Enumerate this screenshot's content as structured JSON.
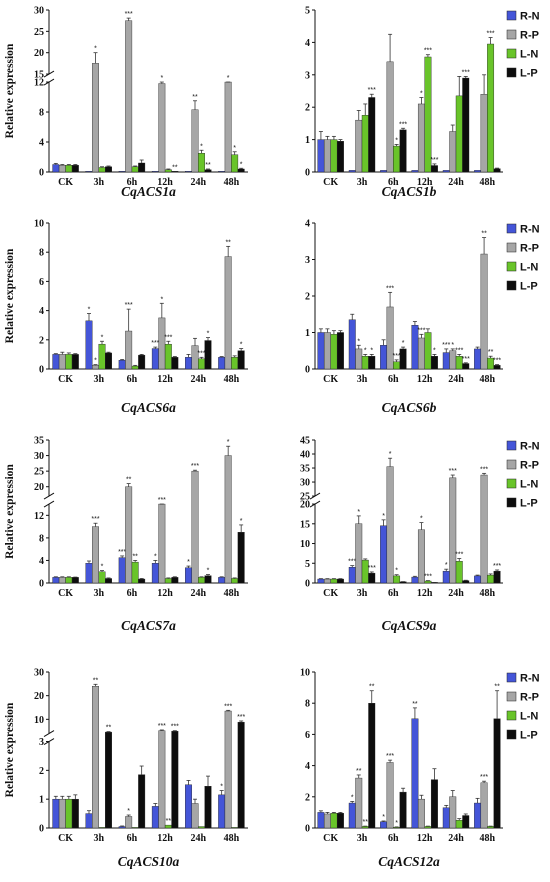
{
  "colors": {
    "R-N": "#4455d8",
    "R-P": "#a6a6a6",
    "L-N": "#69c42a",
    "L-P": "#0d0d0d"
  },
  "legend": [
    "R-N",
    "R-P",
    "L-N",
    "L-P"
  ],
  "chart_data": [
    {
      "type": "bar",
      "title": "CqACS1a",
      "ylabel": "Relative expression",
      "categories": [
        "CK",
        "3h",
        "6h",
        "12h",
        "24h",
        "48h"
      ],
      "ybreak": {
        "lower": [
          0,
          12
        ],
        "upper": [
          15,
          30
        ],
        "ticks_lower": [
          0,
          4,
          8,
          12
        ],
        "ticks_upper": [
          15,
          20,
          25,
          30
        ]
      },
      "series": [
        {
          "name": "R-N",
          "values": [
            1.0,
            0.1,
            0.1,
            0.1,
            0.1,
            0.1
          ],
          "err": [
            0.15,
            0,
            0,
            0,
            0,
            0
          ]
        },
        {
          "name": "R-P",
          "values": [
            0.9,
            17.5,
            27.5,
            11.8,
            8.3,
            12.7
          ],
          "err": [
            0.1,
            2.5,
            0.6,
            2.0,
            1.2,
            1.6
          ]
        },
        {
          "name": "L-N",
          "values": [
            0.9,
            0.6,
            0.7,
            0.3,
            2.5,
            2.3
          ],
          "err": [
            0.1,
            0.1,
            0.1,
            0.1,
            0.4,
            0.4
          ]
        },
        {
          "name": "L-P",
          "values": [
            0.9,
            0.7,
            1.2,
            0.1,
            0.3,
            0.4
          ],
          "err": [
            0.1,
            0.1,
            0.4,
            0,
            0.1,
            0.1
          ]
        }
      ],
      "sig": [
        [
          null,
          null,
          null,
          null
        ],
        [
          null,
          "*",
          null,
          null
        ],
        [
          null,
          "***",
          null,
          null
        ],
        [
          null,
          "*",
          null,
          "**"
        ],
        [
          null,
          "**",
          "*",
          "**"
        ],
        [
          null,
          "*",
          "*",
          "*"
        ]
      ]
    },
    {
      "type": "bar",
      "title": "CqACS1b",
      "ylabel": "",
      "categories": [
        "CK",
        "3h",
        "6h",
        "12h",
        "24h",
        "48h"
      ],
      "ylim": [
        0,
        5
      ],
      "ticks": [
        0,
        1,
        2,
        3,
        4,
        5
      ],
      "series": [
        {
          "name": "R-N",
          "values": [
            1.0,
            0.05,
            0.05,
            0.05,
            0.05,
            0.05
          ],
          "err": [
            0.25,
            0,
            0,
            0,
            0,
            0
          ]
        },
        {
          "name": "R-P",
          "values": [
            1.0,
            1.6,
            3.4,
            2.1,
            1.25,
            2.4
          ],
          "err": [
            0.1,
            0.3,
            0.85,
            0.2,
            0.2,
            0.6
          ]
        },
        {
          "name": "L-N",
          "values": [
            1.0,
            1.75,
            0.8,
            3.55,
            2.35,
            3.95
          ],
          "err": [
            0.1,
            0.35,
            0.05,
            0.07,
            0.6,
            0.2
          ]
        },
        {
          "name": "L-P",
          "values": [
            0.95,
            2.3,
            1.3,
            0.2,
            2.9,
            0.1
          ],
          "err": [
            0.05,
            0.1,
            0.05,
            0.05,
            0.05,
            0.02
          ]
        }
      ],
      "sig": [
        [
          null,
          null,
          null,
          null
        ],
        [
          null,
          null,
          null,
          "***"
        ],
        [
          null,
          null,
          "*",
          "***"
        ],
        [
          null,
          "*",
          "***",
          "***"
        ],
        [
          null,
          null,
          null,
          "***"
        ],
        [
          null,
          null,
          "***",
          null
        ]
      ]
    },
    {
      "type": "bar",
      "title": "CqACS6a",
      "ylabel": "Relative expression",
      "categories": [
        "CK",
        "3h",
        "6h",
        "12h",
        "24h",
        "48h"
      ],
      "ylim": [
        0,
        10
      ],
      "ticks": [
        0,
        2,
        4,
        6,
        8,
        10
      ],
      "series": [
        {
          "name": "R-N",
          "values": [
            1.0,
            3.3,
            0.6,
            1.4,
            0.8,
            0.8
          ],
          "err": [
            0.05,
            0.5,
            0.05,
            0.1,
            0.2,
            0.05
          ]
        },
        {
          "name": "R-P",
          "values": [
            1.0,
            0.25,
            2.6,
            3.5,
            1.6,
            7.7
          ],
          "err": [
            0.15,
            0.05,
            1.5,
            1.0,
            0.5,
            0.7
          ]
        },
        {
          "name": "L-N",
          "values": [
            1.0,
            1.7,
            0.2,
            1.7,
            0.7,
            0.8
          ],
          "err": [
            0.1,
            0.2,
            0.05,
            0.2,
            0.1,
            0.1
          ]
        },
        {
          "name": "L-P",
          "values": [
            1.0,
            1.1,
            0.95,
            0.8,
            1.95,
            1.25
          ],
          "err": [
            0.05,
            0.05,
            0.05,
            0.05,
            0.2,
            0.15
          ]
        }
      ],
      "sig": [
        [
          null,
          null,
          null,
          null
        ],
        [
          "*",
          "*",
          "*",
          null
        ],
        [
          null,
          "***",
          null,
          null
        ],
        [
          "***",
          "*",
          "***",
          null
        ],
        [
          null,
          null,
          "***",
          "*"
        ],
        [
          null,
          "**",
          null,
          "*"
        ]
      ]
    },
    {
      "type": "bar",
      "title": "CqACS6b",
      "ylabel": "",
      "categories": [
        "CK",
        "3h",
        "6h",
        "12h",
        "24h",
        "48h"
      ],
      "ylim": [
        0,
        4
      ],
      "ticks": [
        0,
        1,
        2,
        3,
        4
      ],
      "series": [
        {
          "name": "R-N",
          "values": [
            1.0,
            1.35,
            0.65,
            1.2,
            0.45,
            0.55
          ],
          "err": [
            0.1,
            0.15,
            0.15,
            0.1,
            0.1,
            0.05
          ]
        },
        {
          "name": "R-P",
          "values": [
            1.0,
            0.55,
            1.7,
            0.85,
            0.5,
            3.15
          ],
          "err": [
            0.1,
            0.1,
            0.4,
            0.1,
            0.05,
            0.45
          ]
        },
        {
          "name": "L-N",
          "values": [
            0.95,
            0.35,
            0.2,
            1.0,
            0.35,
            0.3
          ],
          "err": [
            0.1,
            0.05,
            0.05,
            0.1,
            0.05,
            0.05
          ]
        },
        {
          "name": "L-P",
          "values": [
            1.0,
            0.35,
            0.55,
            0.35,
            0.15,
            0.1
          ],
          "err": [
            0.05,
            0.05,
            0.05,
            0.05,
            0.02,
            0.02
          ]
        }
      ],
      "sig": [
        [
          null,
          null,
          null,
          null
        ],
        [
          null,
          "*",
          "*",
          "*"
        ],
        [
          null,
          "***",
          "***",
          "*"
        ],
        [
          null,
          "***",
          null,
          "*"
        ],
        [
          "***",
          "*",
          "***",
          "***"
        ],
        [
          null,
          "**",
          "**",
          "***"
        ]
      ]
    },
    {
      "type": "bar",
      "title": "CqACS7a",
      "ylabel": "Relative expression",
      "categories": [
        "CK",
        "3h",
        "6h",
        "12h",
        "24h",
        "48h"
      ],
      "ybreak": {
        "lower": [
          0,
          14
        ],
        "upper": [
          17,
          35
        ],
        "ticks_lower": [
          0,
          4,
          8,
          12
        ],
        "ticks_upper": [
          20,
          25,
          30,
          35
        ]
      },
      "series": [
        {
          "name": "R-N",
          "values": [
            1.0,
            3.5,
            4.5,
            3.5,
            2.7,
            1.0
          ],
          "err": [
            0.1,
            0.4,
            0.3,
            0.5,
            0.3,
            0.1
          ]
        },
        {
          "name": "R-P",
          "values": [
            1.0,
            10.0,
            20.0,
            14.0,
            25.0,
            30.0
          ],
          "err": [
            0.1,
            0.6,
            1.0,
            0.5,
            0.3,
            3.0
          ]
        },
        {
          "name": "L-N",
          "values": [
            1.0,
            2.0,
            3.7,
            0.8,
            1.0,
            0.8
          ],
          "err": [
            0.1,
            0.2,
            0.3,
            0.1,
            0.1,
            0.1
          ]
        },
        {
          "name": "L-P",
          "values": [
            1.0,
            0.8,
            0.7,
            1.0,
            1.3,
            9.0
          ],
          "err": [
            0.05,
            0.1,
            0.1,
            0.1,
            0.2,
            1.3
          ]
        }
      ],
      "sig": [
        [
          null,
          null,
          null,
          null
        ],
        [
          null,
          "***",
          "*",
          null
        ],
        [
          "***",
          "**",
          "**",
          null
        ],
        [
          "*",
          "***",
          null,
          null
        ],
        [
          "*",
          "***",
          null,
          "*"
        ],
        [
          null,
          "*",
          null,
          "*"
        ]
      ]
    },
    {
      "type": "bar",
      "title": "CqACS9a",
      "ylabel": "",
      "categories": [
        "CK",
        "3h",
        "6h",
        "12h",
        "24h",
        "48h"
      ],
      "ybreak": {
        "lower": [
          0,
          20
        ],
        "upper": [
          25,
          45
        ],
        "ticks_lower": [
          0,
          5,
          10,
          15,
          20
        ],
        "ticks_upper": [
          25,
          30,
          35,
          40,
          45
        ]
      },
      "series": [
        {
          "name": "R-N",
          "values": [
            1.0,
            4.0,
            14.5,
            1.5,
            3.0,
            1.8
          ],
          "err": [
            0.1,
            0.4,
            1.5,
            0.2,
            0.5,
            0.2
          ]
        },
        {
          "name": "R-P",
          "values": [
            1.0,
            15.0,
            35.5,
            13.5,
            31.5,
            32.5
          ],
          "err": [
            0.1,
            2.0,
            3.0,
            1.8,
            1.0,
            0.6
          ]
        },
        {
          "name": "L-N",
          "values": [
            1.0,
            5.8,
            1.8,
            0.5,
            5.5,
            2.0
          ],
          "err": [
            0.1,
            0.3,
            0.3,
            0.1,
            0.7,
            0.3
          ]
        },
        {
          "name": "L-P",
          "values": [
            1.0,
            2.5,
            0.3,
            0.1,
            0.6,
            3.0
          ],
          "err": [
            0.1,
            0.3,
            0.05,
            0.05,
            0.1,
            0.3
          ]
        }
      ],
      "sig": [
        [
          null,
          null,
          null,
          null
        ],
        [
          "***",
          "*",
          null,
          "***"
        ],
        [
          "*",
          "*",
          "*",
          null
        ],
        [
          null,
          "*",
          "***",
          null
        ],
        [
          "*",
          "***",
          "***",
          null
        ],
        [
          null,
          "***",
          null,
          "***"
        ]
      ]
    },
    {
      "type": "bar",
      "title": "CqACS10a",
      "ylabel": "Relative expression",
      "categories": [
        "CK",
        "3h",
        "6h",
        "12h",
        "24h",
        "48h"
      ],
      "ybreak": {
        "lower": [
          0,
          3
        ],
        "upper": [
          4,
          30
        ],
        "ticks_lower": [
          0,
          1,
          2,
          3
        ],
        "ticks_upper": [
          10,
          20,
          30
        ]
      },
      "series": [
        {
          "name": "R-N",
          "values": [
            1.0,
            0.5,
            0.05,
            0.75,
            1.5,
            1.15
          ],
          "err": [
            0.1,
            0.1,
            0.02,
            0.1,
            0.15,
            0.15
          ]
        },
        {
          "name": "R-P",
          "values": [
            1.0,
            24.0,
            0.4,
            5.2,
            0.85,
            13.5
          ],
          "err": [
            0.1,
            0.8,
            0.05,
            0.3,
            0.15,
            0.3
          ]
        },
        {
          "name": "L-N",
          "values": [
            1.0,
            0.02,
            0.02,
            0.1,
            0.05,
            0.02
          ],
          "err": [
            0.1,
            0,
            0,
            0,
            0,
            0
          ]
        },
        {
          "name": "L-P",
          "values": [
            1.0,
            4.6,
            1.85,
            5.0,
            1.45,
            8.8
          ],
          "err": [
            0.15,
            0.2,
            0.3,
            0.2,
            0.35,
            0.5
          ]
        }
      ],
      "sig": [
        [
          null,
          null,
          null,
          null
        ],
        [
          null,
          "**",
          null,
          "**"
        ],
        [
          null,
          "*",
          null,
          null
        ],
        [
          null,
          "***",
          "**",
          "***"
        ],
        [
          null,
          null,
          null,
          null
        ],
        [
          "*",
          "***",
          null,
          "***"
        ]
      ]
    },
    {
      "type": "bar",
      "title": "CqACS12a",
      "ylabel": "",
      "categories": [
        "CK",
        "3h",
        "6h",
        "12h",
        "24h",
        "48h"
      ],
      "ylim": [
        0,
        10
      ],
      "ticks": [
        0,
        2,
        4,
        6,
        8,
        10
      ],
      "series": [
        {
          "name": "R-N",
          "values": [
            1.0,
            1.6,
            0.4,
            7.0,
            1.3,
            1.6
          ],
          "err": [
            0.1,
            0.1,
            0.05,
            0.7,
            0.15,
            0.3
          ]
        },
        {
          "name": "R-P",
          "values": [
            0.9,
            3.2,
            4.2,
            1.85,
            2.0,
            2.9
          ],
          "err": [
            0.1,
            0.2,
            0.15,
            0.25,
            0.4,
            0.1
          ]
        },
        {
          "name": "L-N",
          "values": [
            0.95,
            0.1,
            0.05,
            0.1,
            0.5,
            0.1
          ],
          "err": [
            0.05,
            0.02,
            0.02,
            0.02,
            0.1,
            0.02
          ]
        },
        {
          "name": "L-P",
          "values": [
            0.95,
            8.0,
            2.3,
            3.1,
            0.8,
            7.0
          ],
          "err": [
            0.05,
            0.8,
            0.25,
            0.7,
            0.1,
            1.8
          ]
        }
      ],
      "sig": [
        [
          null,
          null,
          null,
          null
        ],
        [
          "*",
          "**",
          "**",
          "**"
        ],
        [
          "*",
          "***",
          "*",
          null
        ],
        [
          "**",
          null,
          null,
          null
        ],
        [
          null,
          null,
          null,
          null
        ],
        [
          null,
          "***",
          null,
          "**"
        ]
      ]
    }
  ]
}
